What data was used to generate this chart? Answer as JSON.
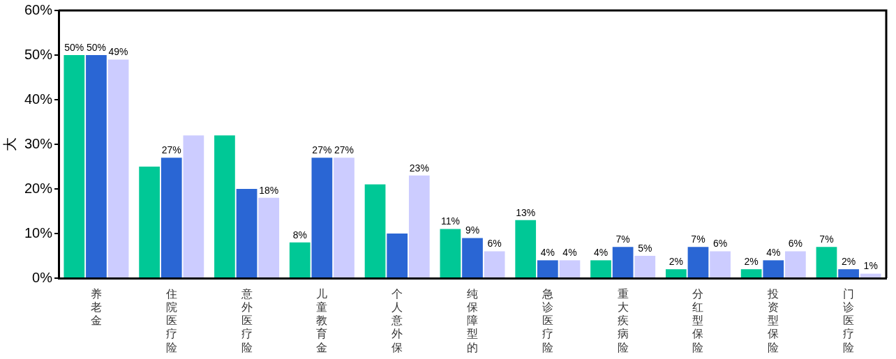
{
  "chart_data": {
    "type": "bar",
    "ylabel": "大",
    "categories": [
      "养老金",
      "住院医疗险",
      "意外医疗险",
      "儿童教育金",
      "个人意外保",
      "纯保障型的",
      "急诊医疗险",
      "重大疾病险",
      "分红型保险",
      "投资型保险",
      "门诊医疗险"
    ],
    "series": [
      {
        "color": "#00c896",
        "values": [
          50,
          25,
          32,
          8,
          21,
          11,
          13,
          4,
          2,
          2,
          7
        ],
        "value_labels": [
          "50%",
          null,
          null,
          "8%",
          null,
          "11%",
          "13%",
          "4%",
          "2%",
          "2%",
          "7%"
        ]
      },
      {
        "color": "#2a66d4",
        "values": [
          50,
          27,
          20,
          27,
          10,
          9,
          4,
          7,
          7,
          4,
          2
        ],
        "value_labels": [
          "50%",
          "27%",
          null,
          "27%",
          null,
          "9%",
          "4%",
          "7%",
          "7%",
          "4%",
          "2%"
        ]
      },
      {
        "color": "#ccccff",
        "values": [
          49,
          32,
          18,
          27,
          23,
          6,
          4,
          5,
          6,
          6,
          1
        ],
        "value_labels": [
          "49%",
          null,
          "18%",
          "27%",
          "23%",
          "6%",
          "4%",
          "5%",
          "6%",
          "6%",
          "1%"
        ]
      }
    ],
    "ylim": [
      0,
      60
    ],
    "yticks": [
      {
        "value": 0,
        "label": "0%"
      },
      {
        "value": 10,
        "label": "10%"
      },
      {
        "value": 20,
        "label": "20%"
      },
      {
        "value": 30,
        "label": "30%"
      },
      {
        "value": 40,
        "label": "40%"
      },
      {
        "value": 50,
        "label": "50%"
      },
      {
        "value": 60,
        "label": "60%"
      }
    ],
    "grid": false,
    "legend": false
  }
}
